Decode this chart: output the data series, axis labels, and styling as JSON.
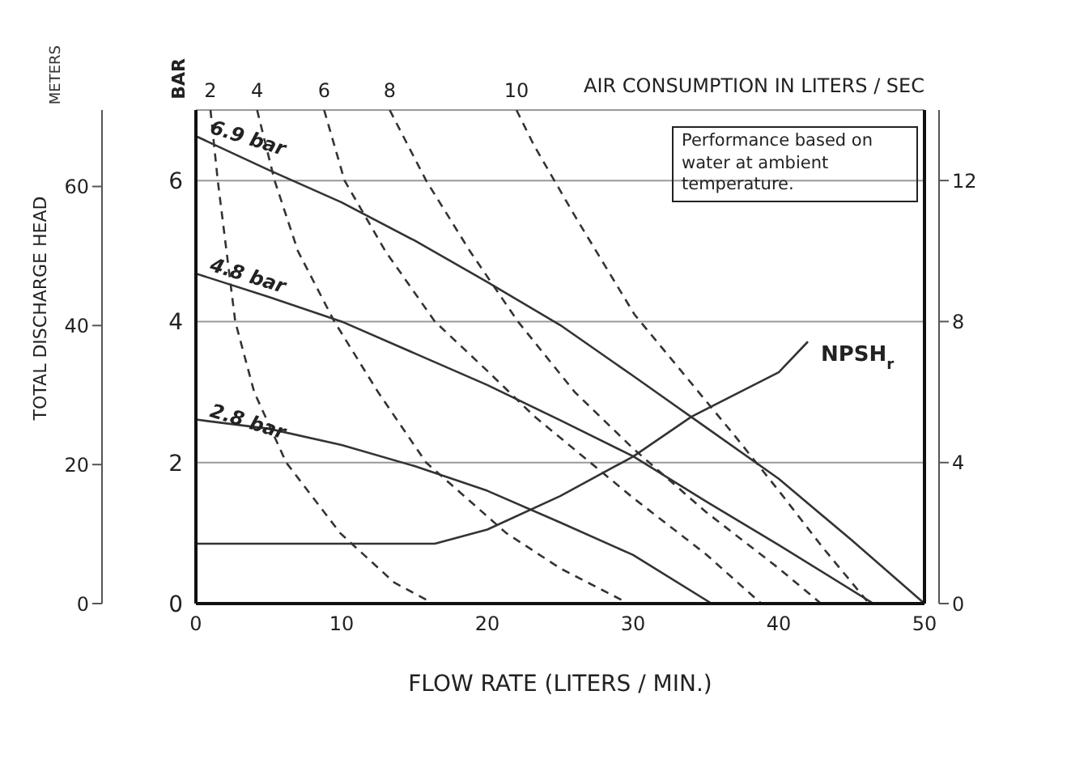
{
  "chart_data": {
    "type": "line",
    "xlabel": "FLOW RATE (LITERS / MIN.)",
    "ylabel": "TOTAL DISCHARGE HEAD",
    "annotations": [
      "METERS",
      "BAR",
      "AIR CONSUMPTION IN LITERS / SEC",
      "Performance based on water at ambient temperature."
    ],
    "xlim": [
      0,
      50
    ],
    "xticks": [
      0,
      10,
      20,
      30,
      40,
      50
    ],
    "ylim": [
      0,
      7
    ],
    "yticks": [
      0,
      2,
      4,
      6
    ],
    "y3lim": [
      0,
      71
    ],
    "y3ticks": [
      0,
      20,
      40,
      60
    ],
    "y2lim": [
      0,
      14
    ],
    "y2ticks": [
      0,
      4,
      8,
      12
    ],
    "grid": true,
    "marker": "none",
    "series": [
      {
        "name": "6.9 bar",
        "color": "#333333",
        "line_style": "solid",
        "x": [
          0,
          5,
          10,
          15,
          20,
          25,
          30,
          35,
          40,
          45,
          50
        ],
        "values": [
          6.63,
          6.15,
          5.69,
          5.15,
          4.56,
          3.95,
          3.23,
          2.5,
          1.77,
          0.9,
          0
        ]
      },
      {
        "name": "4.8 bar",
        "color": "#333333",
        "line_style": "solid",
        "x": [
          0,
          5,
          10,
          15,
          20,
          25,
          30,
          35,
          40,
          46.5
        ],
        "values": [
          4.68,
          4.35,
          4.0,
          3.55,
          3.1,
          2.6,
          2.09,
          1.45,
          0.83,
          0
        ]
      },
      {
        "name": "2.8 bar",
        "color": "#333333",
        "line_style": "solid",
        "x": [
          0,
          5,
          10,
          15,
          20,
          25,
          30,
          35.4
        ],
        "values": [
          2.61,
          2.48,
          2.25,
          1.95,
          1.6,
          1.15,
          0.69,
          0
        ]
      },
      {
        "name": "NPSH$_{r}$",
        "color": "#333333",
        "line_style": "solid",
        "axis": "y2",
        "x": [
          0,
          16.4,
          20,
          25,
          30,
          34,
          40,
          42
        ],
        "values": [
          1.7,
          1.7,
          2.1,
          3.05,
          4.17,
          5.3,
          6.56,
          7.43
        ]
      },
      {
        "name": "2",
        "color": "#333333",
        "line_style": "dashed",
        "x": [
          1.0,
          1.5,
          2.1,
          2.7,
          4,
          6.2,
          9.9,
          13.6,
          16.3
        ],
        "values": [
          7,
          6,
          5,
          4,
          3,
          2,
          1,
          0.3,
          0
        ]
      },
      {
        "name": "4",
        "color": "#333333",
        "line_style": "dashed",
        "x": [
          4.2,
          5.4,
          7,
          9.5,
          12.5,
          15.8,
          21.3,
          25,
          29.7
        ],
        "values": [
          7,
          6,
          5,
          4,
          3,
          2,
          1,
          0.5,
          0
        ]
      },
      {
        "name": "6",
        "color": "#333333",
        "line_style": "dashed",
        "x": [
          8.8,
          10.2,
          13,
          16.4,
          20,
          23.2,
          30,
          35,
          38.8
        ],
        "values": [
          7,
          6,
          5,
          4,
          3.3,
          2.66,
          1.5,
          0.7,
          0
        ]
      },
      {
        "name": "8",
        "color": "#333333",
        "line_style": "dashed",
        "x": [
          13.3,
          15.8,
          18.8,
          22.1,
          26,
          30,
          35,
          40,
          42.9
        ],
        "values": [
          7,
          6,
          5,
          4,
          3,
          2.2,
          1.3,
          0.5,
          0
        ]
      },
      {
        "name": "10",
        "color": "#333333",
        "line_style": "dashed",
        "x": [
          22,
          23.2,
          26,
          30.1,
          33.3,
          36.9,
          40,
          43,
          46.2
        ],
        "values": [
          7,
          6.5,
          5.5,
          4.1,
          3.3,
          2.4,
          1.6,
          0.8,
          0
        ]
      }
    ]
  }
}
